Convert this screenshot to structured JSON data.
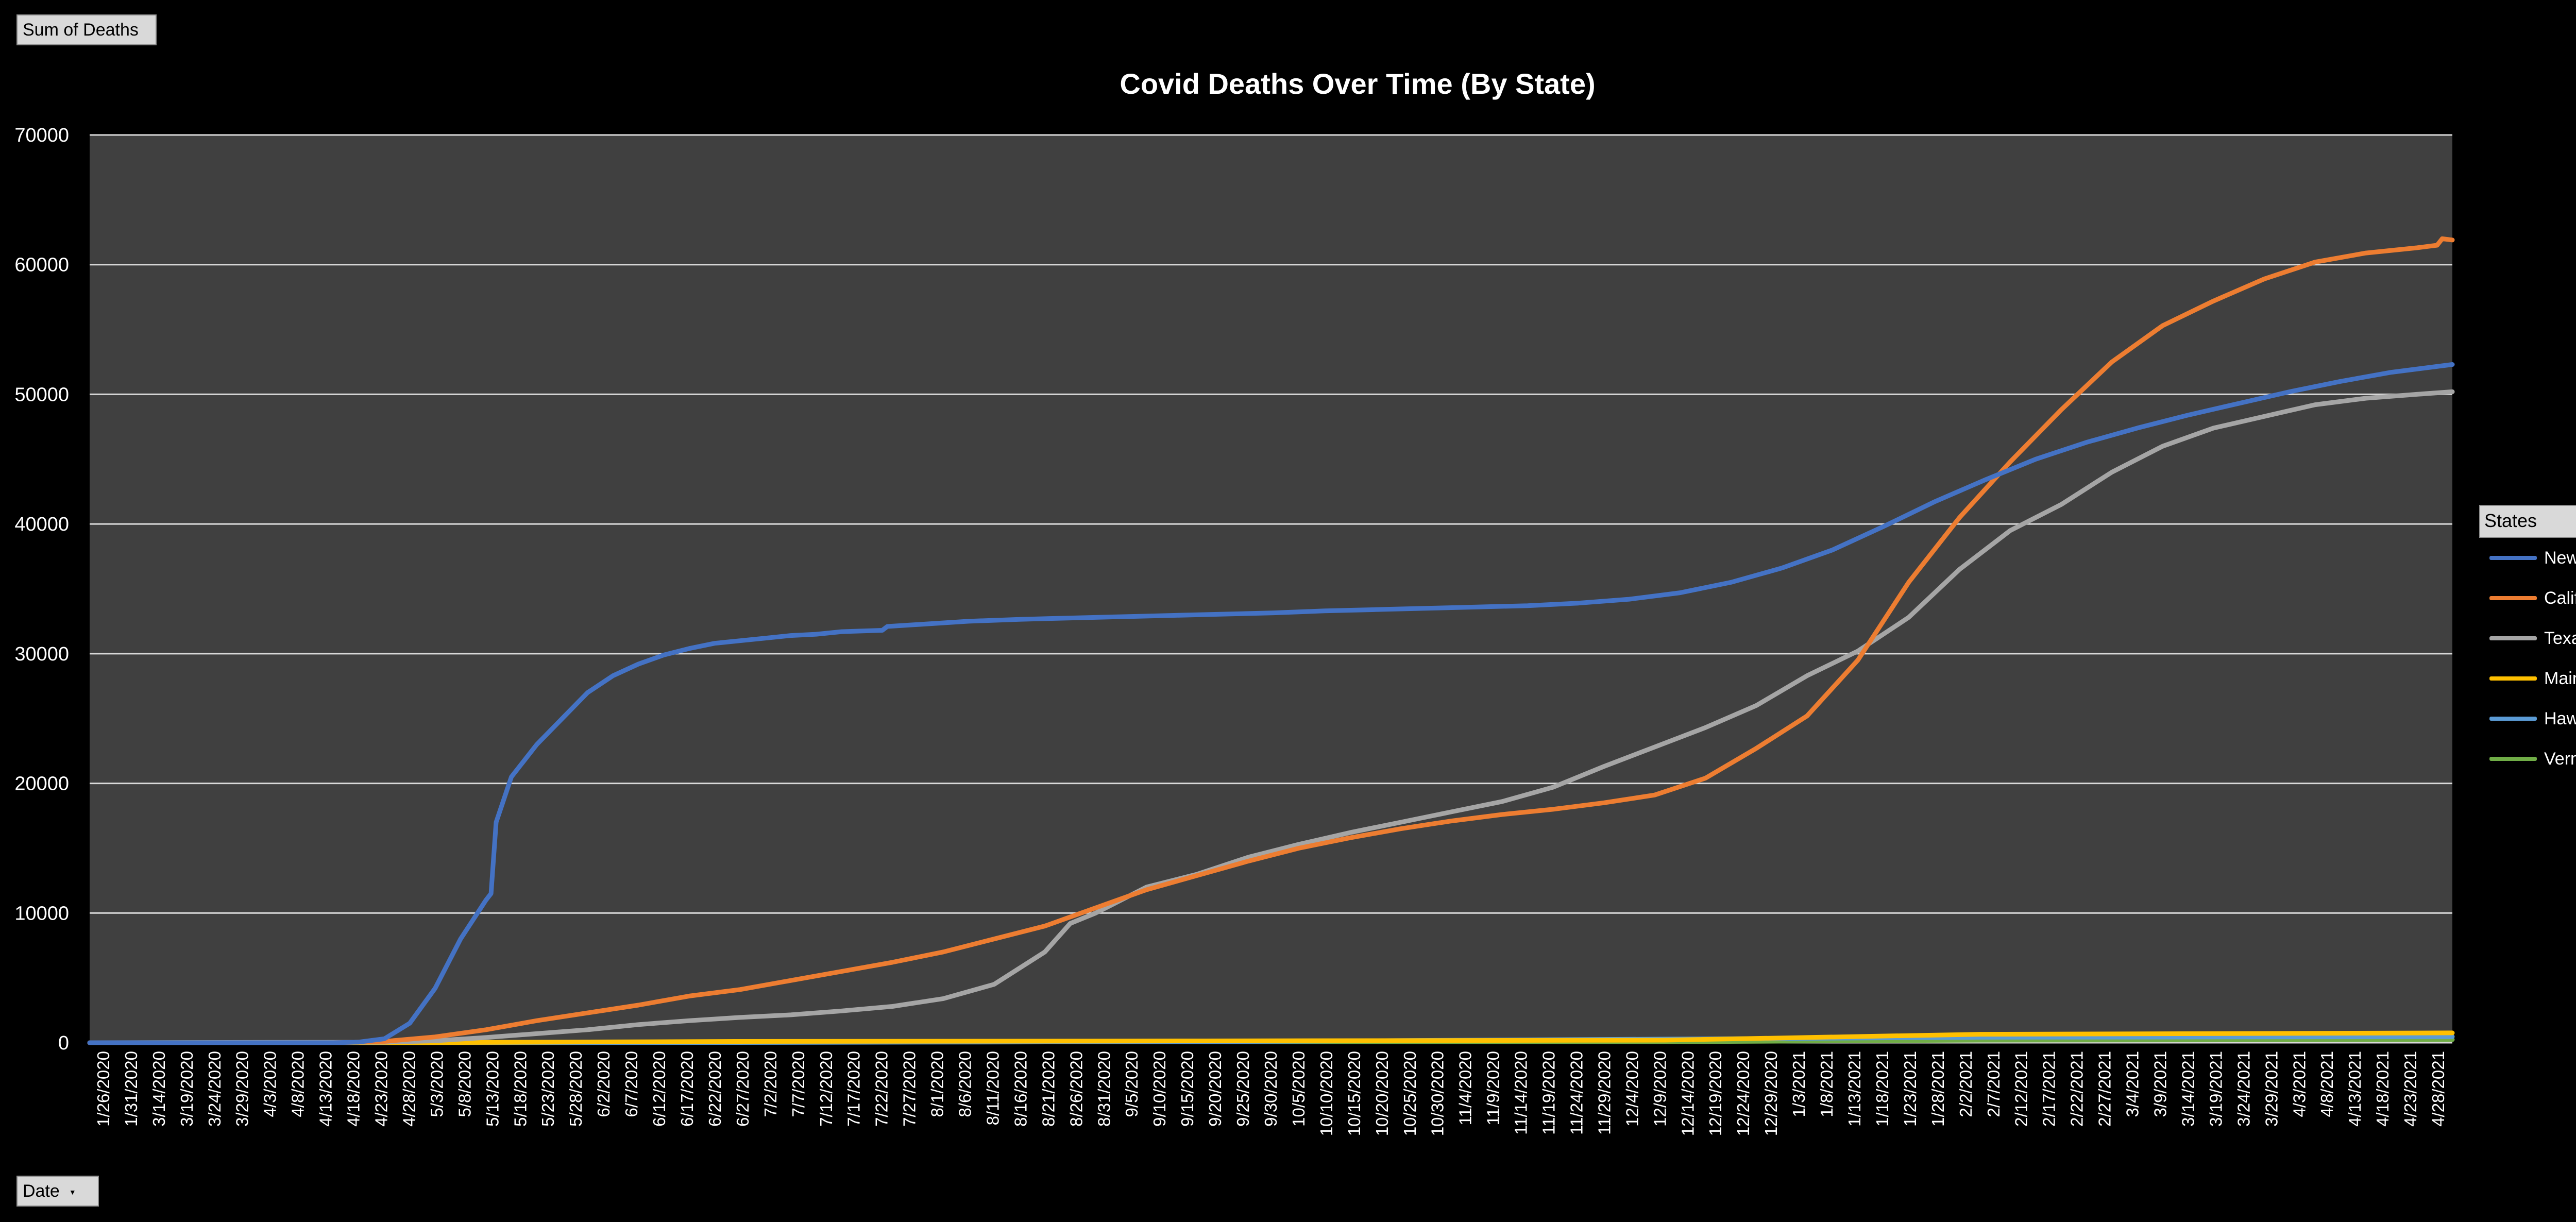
{
  "buttons": {
    "sum_label": "Sum of Deaths",
    "date_label": "Date"
  },
  "legend": {
    "header": "States",
    "header_marker": "."
  },
  "chart_data": {
    "type": "line",
    "title": "Covid Deaths Over Time (By State)",
    "xlabel": "",
    "ylabel": "",
    "ylim": [
      0,
      70000
    ],
    "yticks": [
      0,
      10000,
      20000,
      30000,
      40000,
      50000,
      60000,
      70000
    ],
    "grid": true,
    "legend_position": "right",
    "x_start": "1/26/2020",
    "x_end": "5/5/2021",
    "x_tick_labels": [
      "1/26/2020",
      "1/31/2020",
      "3/14/2020",
      "3/19/2020",
      "3/24/2020",
      "3/29/2020",
      "4/3/2020",
      "4/8/2020",
      "4/13/2020",
      "4/18/2020",
      "4/23/2020",
      "4/28/2020",
      "5/3/2020",
      "5/8/2020",
      "5/13/2020",
      "5/18/2020",
      "5/23/2020",
      "5/28/2020",
      "6/2/2020",
      "6/7/2020",
      "6/12/2020",
      "6/17/2020",
      "6/22/2020",
      "6/27/2020",
      "7/2/2020",
      "7/7/2020",
      "7/12/2020",
      "7/17/2020",
      "7/22/2020",
      "7/27/2020",
      "8/1/2020",
      "8/6/2020",
      "8/11/2020",
      "8/16/2020",
      "8/21/2020",
      "8/26/2020",
      "8/31/2020",
      "9/5/2020",
      "9/10/2020",
      "9/15/2020",
      "9/20/2020",
      "9/25/2020",
      "9/30/2020",
      "10/5/2020",
      "10/10/2020",
      "10/15/2020",
      "10/20/2020",
      "10/25/2020",
      "10/30/2020",
      "11/4/2020",
      "11/9/2020",
      "11/14/2020",
      "11/19/2020",
      "11/24/2020",
      "11/29/2020",
      "12/4/2020",
      "12/9/2020",
      "12/14/2020",
      "12/19/2020",
      "12/24/2020",
      "12/29/2020",
      "1/3/2021",
      "1/8/2021",
      "1/13/2021",
      "1/18/2021",
      "1/23/2021",
      "1/28/2021",
      "2/2/2021",
      "2/7/2021",
      "2/12/2021",
      "2/17/2021",
      "2/22/2021",
      "2/27/2021",
      "3/4/2021",
      "3/9/2021",
      "3/14/2021",
      "3/19/2021",
      "3/24/2021",
      "3/29/2021",
      "4/3/2021",
      "4/8/2021",
      "4/13/2021",
      "4/18/2021",
      "4/23/2021",
      "4/28/2021"
    ],
    "series": [
      {
        "name": "New York",
        "color": "#4472c4",
        "x": [
          "1/26/2020",
          "3/14/2020",
          "3/19/2020",
          "3/24/2020",
          "3/29/2020",
          "4/3/2020",
          "4/8/2020",
          "4/13/2020",
          "4/14/2020",
          "4/15/2020",
          "4/18/2020",
          "4/23/2020",
          "4/28/2020",
          "5/3/2020",
          "5/8/2020",
          "5/13/2020",
          "5/18/2020",
          "5/23/2020",
          "5/28/2020",
          "6/2/2020",
          "6/7/2020",
          "6/12/2020",
          "6/17/2020",
          "6/22/2020",
          "6/30/2020",
          "7/1/2020",
          "7/7/2020",
          "7/17/2020",
          "7/27/2020",
          "8/6/2020",
          "8/16/2020",
          "8/26/2020",
          "9/5/2020",
          "9/15/2020",
          "9/25/2020",
          "10/5/2020",
          "10/15/2020",
          "10/25/2020",
          "11/4/2020",
          "11/14/2020",
          "11/24/2020",
          "12/4/2020",
          "12/14/2020",
          "12/24/2020",
          "1/3/2021",
          "1/13/2021",
          "1/23/2021",
          "2/2/2021",
          "2/12/2021",
          "2/22/2021",
          "3/4/2021",
          "3/14/2021",
          "3/24/2021",
          "4/3/2021",
          "4/13/2021",
          "4/23/2021",
          "5/5/2021"
        ],
        "y": [
          0,
          0,
          50,
          300,
          1500,
          4200,
          8000,
          11000,
          11500,
          17000,
          20500,
          23000,
          25000,
          27000,
          28300,
          29200,
          29900,
          30400,
          30800,
          31000,
          31200,
          31400,
          31500,
          31700,
          31800,
          32100,
          32250,
          32500,
          32650,
          32750,
          32850,
          32950,
          33050,
          33150,
          33300,
          33400,
          33500,
          33600,
          33700,
          33900,
          34200,
          34700,
          35500,
          36600,
          38000,
          39800,
          41700,
          43400,
          45000,
          46300,
          47400,
          48400,
          49300,
          50200,
          51000,
          51700,
          52300
        ]
      },
      {
        "name": "California",
        "color": "#ed7d31",
        "x": [
          "1/26/2020",
          "3/14/2020",
          "3/24/2020",
          "4/3/2020",
          "4/13/2020",
          "4/23/2020",
          "5/3/2020",
          "5/13/2020",
          "5/23/2020",
          "6/2/2020",
          "6/12/2020",
          "6/22/2020",
          "7/2/2020",
          "7/12/2020",
          "7/22/2020",
          "8/1/2020",
          "8/11/2020",
          "8/21/2020",
          "8/31/2020",
          "9/10/2020",
          "9/20/2020",
          "9/30/2020",
          "10/10/2020",
          "10/20/2020",
          "10/30/2020",
          "11/9/2020",
          "11/19/2020",
          "11/29/2020",
          "12/9/2020",
          "12/19/2020",
          "12/29/2020",
          "1/8/2021",
          "1/18/2021",
          "1/28/2021",
          "2/7/2021",
          "2/17/2021",
          "2/27/2021",
          "3/9/2021",
          "3/19/2021",
          "3/29/2021",
          "4/8/2021",
          "4/18/2021",
          "4/28/2021",
          "5/2/2021",
          "5/3/2021",
          "5/5/2021"
        ],
        "y": [
          0,
          0,
          100,
          450,
          1000,
          1700,
          2300,
          2900,
          3600,
          4100,
          4800,
          5500,
          6200,
          7000,
          8000,
          9000,
          10400,
          11800,
          12900,
          14000,
          15000,
          15800,
          16500,
          17100,
          17600,
          18000,
          18500,
          19100,
          20400,
          22700,
          25200,
          29500,
          35500,
          40500,
          44800,
          48800,
          52500,
          55300,
          57200,
          58900,
          60200,
          60900,
          61300,
          61500,
          62000,
          61900
        ]
      },
      {
        "name": "Texas",
        "color": "#a5a5a5",
        "x": [
          "1/26/2020",
          "3/24/2020",
          "4/3/2020",
          "4/13/2020",
          "4/23/2020",
          "5/3/2020",
          "5/13/2020",
          "5/23/2020",
          "6/2/2020",
          "6/12/2020",
          "6/22/2020",
          "7/2/2020",
          "7/12/2020",
          "7/22/2020",
          "8/1/2020",
          "8/6/2020",
          "8/11/2020",
          "8/21/2020",
          "8/31/2020",
          "9/10/2020",
          "9/20/2020",
          "9/30/2020",
          "10/10/2020",
          "10/20/2020",
          "10/30/2020",
          "11/9/2020",
          "11/19/2020",
          "11/29/2020",
          "12/9/2020",
          "12/19/2020",
          "12/29/2020",
          "1/8/2021",
          "1/18/2021",
          "1/28/2021",
          "2/7/2021",
          "2/17/2021",
          "2/27/2021",
          "3/9/2021",
          "3/19/2021",
          "3/29/2021",
          "4/8/2021",
          "4/18/2021",
          "4/28/2021",
          "5/5/2021"
        ],
        "y": [
          0,
          40,
          150,
          400,
          700,
          1000,
          1400,
          1700,
          1950,
          2150,
          2450,
          2800,
          3400,
          4500,
          7000,
          9200,
          10000,
          12000,
          13000,
          14300,
          15300,
          16200,
          17000,
          17800,
          18600,
          19700,
          21300,
          22800,
          24300,
          26000,
          28300,
          30200,
          32800,
          36500,
          39500,
          41500,
          44000,
          46000,
          47400,
          48300,
          49200,
          49700,
          50000,
          50200
        ]
      },
      {
        "name": "Maine",
        "color": "#ffc000",
        "x": [
          "1/26/2020",
          "4/1/2020",
          "6/1/2020",
          "9/1/2020",
          "12/1/2020",
          "2/1/2021",
          "5/5/2021"
        ],
        "y": [
          0,
          10,
          100,
          140,
          200,
          650,
          760
        ]
      },
      {
        "name": "Hawaii",
        "color": "#5b9bd5",
        "x": [
          "1/26/2020",
          "4/1/2020",
          "6/1/2020",
          "9/1/2020",
          "12/1/2020",
          "2/1/2021",
          "5/5/2021"
        ],
        "y": [
          0,
          5,
          20,
          80,
          280,
          420,
          470
        ]
      },
      {
        "name": "Vermont",
        "color": "#70ad47",
        "x": [
          "1/26/2020",
          "4/1/2020",
          "6/1/2020",
          "9/1/2020",
          "12/1/2020",
          "2/1/2021",
          "5/5/2021"
        ],
        "y": [
          0,
          20,
          55,
          58,
          75,
          200,
          240
        ]
      }
    ]
  }
}
